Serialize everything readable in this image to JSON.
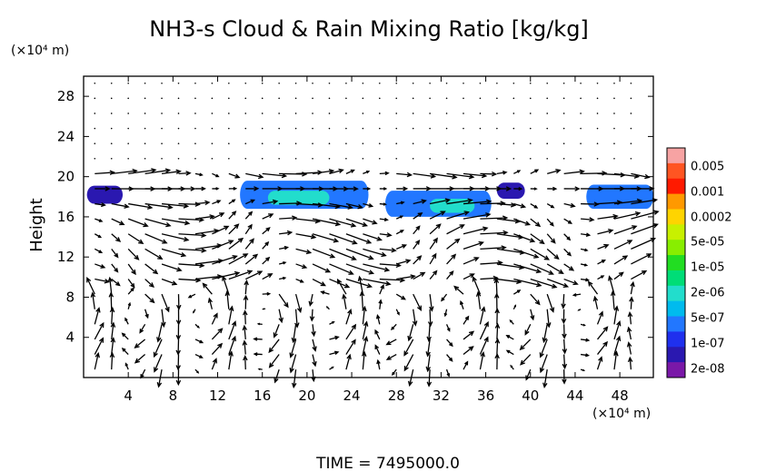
{
  "chart_data": {
    "type": "heatmap",
    "title": "NH3-s Cloud & Rain Mixing Ratio [kg/kg]",
    "ylabel": "Height",
    "xlabel": "",
    "x_unit": "(×10⁴ m)",
    "y_unit": "(×10⁴ m)",
    "xlim": [
      0,
      51
    ],
    "ylim": [
      0,
      30
    ],
    "x_ticks": [
      "4",
      "8",
      "12",
      "16",
      "20",
      "24",
      "28",
      "32",
      "36",
      "40",
      "44",
      "48"
    ],
    "y_ticks": [
      "4",
      "8",
      "12",
      "16",
      "20",
      "24",
      "28"
    ],
    "colorbar": {
      "labels": [
        "0.005",
        "0.001",
        "0.0002",
        "5e-05",
        "1e-05",
        "2e-06",
        "5e-07",
        "1e-07",
        "2e-08"
      ],
      "colors": [
        "#f7a3a3",
        "#ff5522",
        "#ff1a00",
        "#ff9900",
        "#ffd400",
        "#c8f000",
        "#88ee00",
        "#22dd22",
        "#00dd77",
        "#22ddcc",
        "#00bbee",
        "#2277ff",
        "#1f30ee",
        "#2a18b0",
        "#7a18a8"
      ]
    },
    "cloud_patches": [
      {
        "x": [
          0.3,
          3.5
        ],
        "y": [
          17.3,
          19.1
        ],
        "level": "1e-07"
      },
      {
        "x": [
          14.0,
          25.5
        ],
        "y": [
          16.8,
          19.6
        ],
        "level": "5e-07"
      },
      {
        "x": [
          16.5,
          22.0
        ],
        "y": [
          17.2,
          18.6
        ],
        "level": "2e-06"
      },
      {
        "x": [
          27.0,
          36.5
        ],
        "y": [
          16.0,
          18.6
        ],
        "level": "5e-07"
      },
      {
        "x": [
          31.0,
          35.0
        ],
        "y": [
          16.4,
          17.8
        ],
        "level": "2e-06"
      },
      {
        "x": [
          37.0,
          39.5
        ],
        "y": [
          17.8,
          19.4
        ],
        "level": "1e-07"
      },
      {
        "x": [
          45.0,
          51.0
        ],
        "y": [
          16.8,
          19.2
        ],
        "level": "5e-07"
      }
    ],
    "grid": false,
    "legend": "colorbar-right"
  },
  "footer": {
    "time_label": "TIME  =  7495000.0"
  }
}
